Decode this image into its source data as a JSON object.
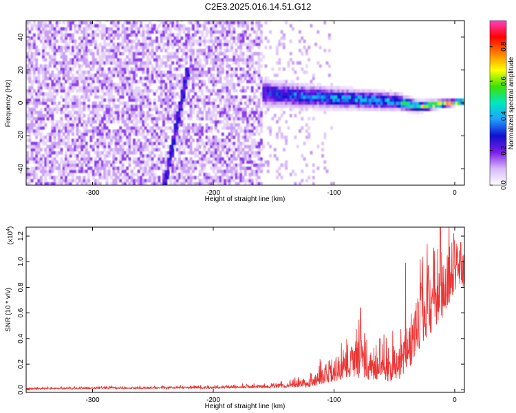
{
  "title": "C2E3.2025.016.14.51.G12",
  "chart_data": [
    {
      "type": "heatmap",
      "xlabel": "Height of straight line (km)",
      "ylabel": "Frequency (Hz)",
      "xlim": [
        -355,
        8
      ],
      "ylim": [
        -50,
        50
      ],
      "x_ticks": [
        -300,
        -200,
        -100,
        0
      ],
      "y_ticks": [
        -40,
        -20,
        0,
        20,
        40
      ],
      "colorbar": {
        "label": "Normalized spectral amplitude",
        "range": [
          0.0,
          0.95
        ],
        "ticks": [
          "0.0",
          "0.2",
          "0.4",
          "0.6",
          "0.8"
        ],
        "tick_values": [
          0.0,
          0.2,
          0.4,
          0.6,
          0.8
        ],
        "colormap": [
          "#ffffff",
          "#d8b8f8",
          "#7a1de8",
          "#1010d0",
          "#1fa0ff",
          "#00e8c0",
          "#40e000",
          "#ffff00",
          "#ff8000",
          "#ff0000",
          "#ff40c0"
        ]
      },
      "features": [
        {
          "description": "broadband noise",
          "x_range": [
            -355,
            -160
          ],
          "amplitude": 0.15
        },
        {
          "description": "narrowing band around 0 Hz",
          "x_range": [
            -160,
            8
          ],
          "center_hz": [
            5,
            2,
            0,
            -3,
            0
          ],
          "center_x": [
            -160,
            -100,
            -50,
            -30,
            5
          ],
          "halfwidth_hz": [
            8,
            6,
            5,
            3,
            1.5
          ],
          "peak_amplitude": [
            0.35,
            0.45,
            0.5,
            0.75,
            0.92
          ]
        },
        {
          "description": "diagonal streak",
          "x_from": -241,
          "y_from": -50,
          "x_to": -222,
          "y_to": 20
        }
      ]
    },
    {
      "type": "line",
      "xlabel": "Height of straight line (km)",
      "ylabel": "SNR (10 * v/v)",
      "exponent_label": "(x10",
      "exponent_sup": "4",
      "exponent_close": ")",
      "xlim": [
        -355,
        8
      ],
      "ylim": [
        -0.02,
        1.27
      ],
      "x_ticks": [
        -300,
        -200,
        -100,
        0
      ],
      "y_ticks": [
        "0.0",
        "0.2",
        "0.4",
        "0.6",
        "0.8",
        "1.0",
        "1.2"
      ],
      "y_tick_values": [
        0.0,
        0.2,
        0.4,
        0.6,
        0.8,
        1.0,
        1.2
      ],
      "line_color": "#ee3333",
      "envelope": {
        "x": [
          -355,
          -300,
          -200,
          -160,
          -140,
          -120,
          -110,
          -100,
          -90,
          -85,
          -80,
          -75,
          -70,
          -60,
          -50,
          -45,
          -40,
          -35,
          -30,
          -25,
          -20,
          -15,
          -10,
          -5,
          0,
          5,
          8
        ],
        "base": [
          0.005,
          0.008,
          0.012,
          0.015,
          0.02,
          0.03,
          0.05,
          0.08,
          0.12,
          0.14,
          0.13,
          0.12,
          0.1,
          0.09,
          0.1,
          0.12,
          0.15,
          0.25,
          0.35,
          0.45,
          0.5,
          0.55,
          0.6,
          0.7,
          0.8,
          0.85,
          0.8
        ],
        "spread": [
          0.01,
          0.012,
          0.015,
          0.02,
          0.04,
          0.06,
          0.1,
          0.14,
          0.2,
          0.25,
          0.35,
          0.25,
          0.2,
          0.18,
          0.2,
          0.22,
          0.25,
          0.3,
          0.35,
          0.4,
          0.45,
          0.4,
          0.35,
          0.3,
          0.25,
          0.2,
          0.2
        ]
      },
      "peaks": [
        {
          "x": -78,
          "y": 0.64
        },
        {
          "x": -62,
          "y": 0.4
        },
        {
          "x": -22,
          "y": 0.97
        },
        {
          "x": -12,
          "y": 1.27
        },
        {
          "x": 5,
          "y": 1.15
        }
      ]
    }
  ]
}
